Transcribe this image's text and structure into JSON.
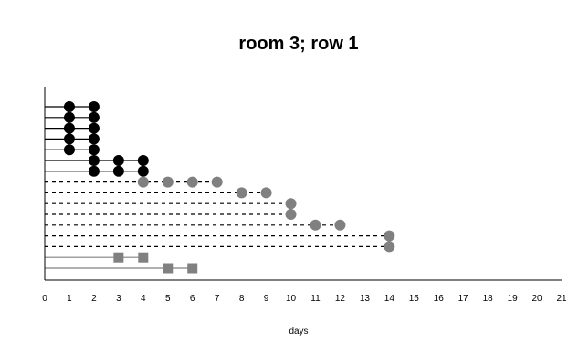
{
  "chart_data": {
    "type": "scatter",
    "title": "room 3; row 1",
    "xlabel": "days",
    "ylabel": "",
    "xlim": [
      0,
      21
    ],
    "xticks": [
      "0",
      "1",
      "2",
      "3",
      "4",
      "5",
      "6",
      "7",
      "8",
      "9",
      "10",
      "11",
      "12",
      "13",
      "14",
      "15",
      "16",
      "17",
      "18",
      "19",
      "20",
      "21"
    ],
    "grid": false,
    "legend": "none",
    "colors": {
      "black": "#000000",
      "gray": "#808080",
      "frame": "#000000"
    },
    "rows": [
      {
        "line": "solid",
        "color": "black",
        "marker": "circle",
        "x_start": 0,
        "points": [
          1,
          2
        ]
      },
      {
        "line": "solid",
        "color": "black",
        "marker": "circle",
        "x_start": 0,
        "points": [
          1,
          2
        ]
      },
      {
        "line": "solid",
        "color": "black",
        "marker": "circle",
        "x_start": 0,
        "points": [
          1,
          2
        ]
      },
      {
        "line": "solid",
        "color": "black",
        "marker": "circle",
        "x_start": 0,
        "points": [
          1,
          2
        ]
      },
      {
        "line": "solid",
        "color": "black",
        "marker": "circle",
        "x_start": 0,
        "points": [
          1,
          2
        ]
      },
      {
        "line": "solid",
        "color": "black",
        "marker": "circle",
        "x_start": 0,
        "points": [
          2,
          3,
          4
        ]
      },
      {
        "line": "solid",
        "color": "black",
        "marker": "circle",
        "x_start": 0,
        "points": [
          2,
          3,
          4
        ]
      },
      {
        "line": "dashed",
        "color": "black",
        "marker": "circle",
        "marker_color": "gray",
        "x_start": 0,
        "points": [
          4,
          5,
          6,
          7
        ]
      },
      {
        "line": "dashed",
        "color": "black",
        "marker": "circle",
        "marker_color": "gray",
        "x_start": 0,
        "points": [
          8,
          9
        ]
      },
      {
        "line": "dashed",
        "color": "black",
        "marker": "circle",
        "marker_color": "gray",
        "x_start": 0,
        "points": [
          10
        ]
      },
      {
        "line": "dashed",
        "color": "black",
        "marker": "circle",
        "marker_color": "gray",
        "x_start": 0,
        "points": [
          10
        ]
      },
      {
        "line": "dashed",
        "color": "black",
        "marker": "circle",
        "marker_color": "gray",
        "x_start": 0,
        "points": [
          11,
          12
        ]
      },
      {
        "line": "dashed",
        "color": "black",
        "marker": "circle",
        "marker_color": "gray",
        "x_start": 0,
        "points": [
          14
        ]
      },
      {
        "line": "dashed",
        "color": "black",
        "marker": "circle",
        "marker_color": "gray",
        "x_start": 0,
        "points": [
          14
        ]
      },
      {
        "line": "solid",
        "color": "gray",
        "marker": "square",
        "marker_color": "gray",
        "x_start": 0,
        "points": [
          3,
          4
        ]
      },
      {
        "line": "solid",
        "color": "gray",
        "marker": "square",
        "marker_color": "gray",
        "x_start": 0,
        "points": [
          5,
          6
        ]
      }
    ]
  }
}
